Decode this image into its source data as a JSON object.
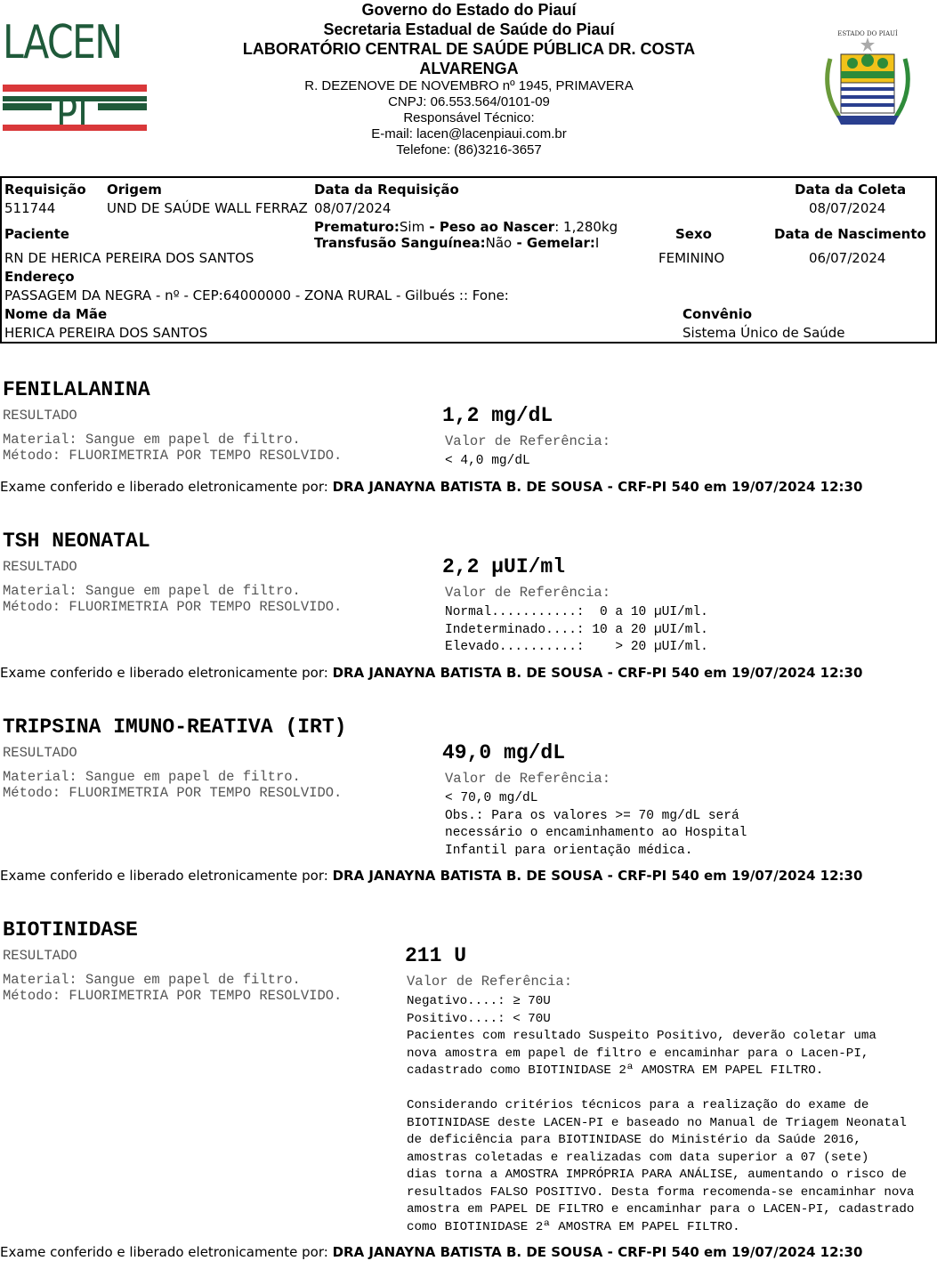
{
  "header": {
    "logo_text": "LACEN PI",
    "lines_bold": [
      "Governo do Estado do Piauí",
      "Secretaria Estadual de Saúde do Piauí",
      "LABORATÓRIO CENTRAL DE SAÚDE PÚBLICA DR. COSTA",
      "ALVARENGA"
    ],
    "lines": [
      "R. DEZENOVE DE NOVEMBRO nº 1945, PRIMAVERA",
      "CNPJ: 06.553.564/0101-09",
      "Responsável Técnico:",
      "E-mail: lacen@lacenpiaui.com.br",
      "Telefone: (86)3216-3657"
    ],
    "seal_text": "ESTADO DO PIAUÍ"
  },
  "patient": {
    "requisicao_label": "Requisição",
    "requisicao": "511744",
    "origem_label": "Origem",
    "origem": "UND DE SAÚDE WALL FERRAZ",
    "data_requisicao_label": "Data da Requisição",
    "data_requisicao": "08/07/2024",
    "data_coleta_label": "Data da Coleta",
    "data_coleta": "08/07/2024",
    "paciente_label": "Paciente",
    "paciente": "RN DE HERICA PEREIRA DOS SANTOS",
    "prematuro_label": "Prematuro:",
    "prematuro": "Sim",
    "peso_label": "Peso ao Nascer",
    "peso": ": 1,280kg",
    "transfusao_label": "Transfusão Sanguínea:",
    "transfusao": "Não",
    "gemelar_label": "Gemelar:",
    "gemelar": "I",
    "sep": " - ",
    "sexo_label": "Sexo",
    "sexo": "FEMININO",
    "nascimento_label": "Data de Nascimento",
    "nascimento": "06/07/2024",
    "endereco_label": "Endereço",
    "endereco": "PASSAGEM DA NEGRA - nº - CEP:64000000 - ZONA RURAL - Gilbués :: Fone:",
    "mae_label": "Nome da Mãe",
    "mae": "HERICA PEREIRA DOS SANTOS",
    "convenio_label": "Convênio",
    "convenio": "Sistema Único de Saúde"
  },
  "exams": [
    {
      "title": "FENILALANINA",
      "result_label": "RESULTADO",
      "result": "1,2 mg/dL",
      "material": "Material: Sangue em papel de filtro.",
      "metodo": "Método: FLUORIMETRIA POR TEMPO RESOLVIDO.",
      "ref_label": "Valor de Referência:",
      "ref": "< 4,0 mg/dL"
    },
    {
      "title": "TSH NEONATAL",
      "result_label": "RESULTADO",
      "result": "2,2 µUI/ml",
      "material": "Material: Sangue em papel de filtro.",
      "metodo": "Método: FLUORIMETRIA POR TEMPO RESOLVIDO.",
      "ref_label": "Valor de Referência:",
      "ref": "Normal...........:  0 a 10 µUI/ml.\nIndeterminado....: 10 a 20 µUI/ml.\nElevado..........:    > 20 µUI/ml."
    },
    {
      "title": "TRIPSINA IMUNO-REATIVA (IRT)",
      "result_label": "RESULTADO",
      "result": "49,0 mg/dL",
      "material": "Material: Sangue em papel de filtro.",
      "metodo": "Método: FLUORIMETRIA POR TEMPO RESOLVIDO.",
      "ref_label": "Valor de Referência:",
      "ref": "< 70,0 mg/dL\nObs.: Para os valores >= 70 mg/dL será\nnecessário o encaminhamento ao Hospital\nInfantil para orientação médica."
    },
    {
      "title": "BIOTINIDASE",
      "result_label": "RESULTADO",
      "result": "211 U",
      "material": "Material: Sangue em papel de filtro.",
      "metodo": "Método: FLUORIMETRIA POR TEMPO RESOLVIDO.",
      "ref_label": "Valor de Referência:",
      "ref": "Negativo....: ≥ 70U\nPositivo....: < 70U\nPacientes com resultado Suspeito Positivo, deverão coletar uma\nnova amostra em papel de filtro e encaminhar para o Lacen-PI,\ncadastrado como BIOTINIDASE 2ª AMOSTRA EM PAPEL FILTRO.\n\nConsiderando critérios técnicos para a realização do exame de\nBIOTINIDASE deste LACEN-PI e baseado no Manual de Triagem Neonatal\nde deficiência para BIOTINIDASE do Ministério da Saúde 2016,\namostras coletadas e realizadas com data superior a 07 (sete)\ndias torna a AMOSTRA IMPRÓPRIA PARA ANÁLISE, aumentando o risco de\nresultados FALSO POSITIVO. Desta forma recomenda-se encaminhar nova\namostra em PAPEL DE FILTRO e encaminhar para o LACEN-PI, cadastrado\ncomo BIOTINIDASE 2ª AMOSTRA EM PAPEL FILTRO."
    }
  ],
  "release": {
    "prefix": "Exame conferido e liberado eletronicamente por: ",
    "signer": "DRA JANAYNA BATISTA B. DE SOUSA - CRF-PI 540 em 19/07/2024 12:30"
  }
}
